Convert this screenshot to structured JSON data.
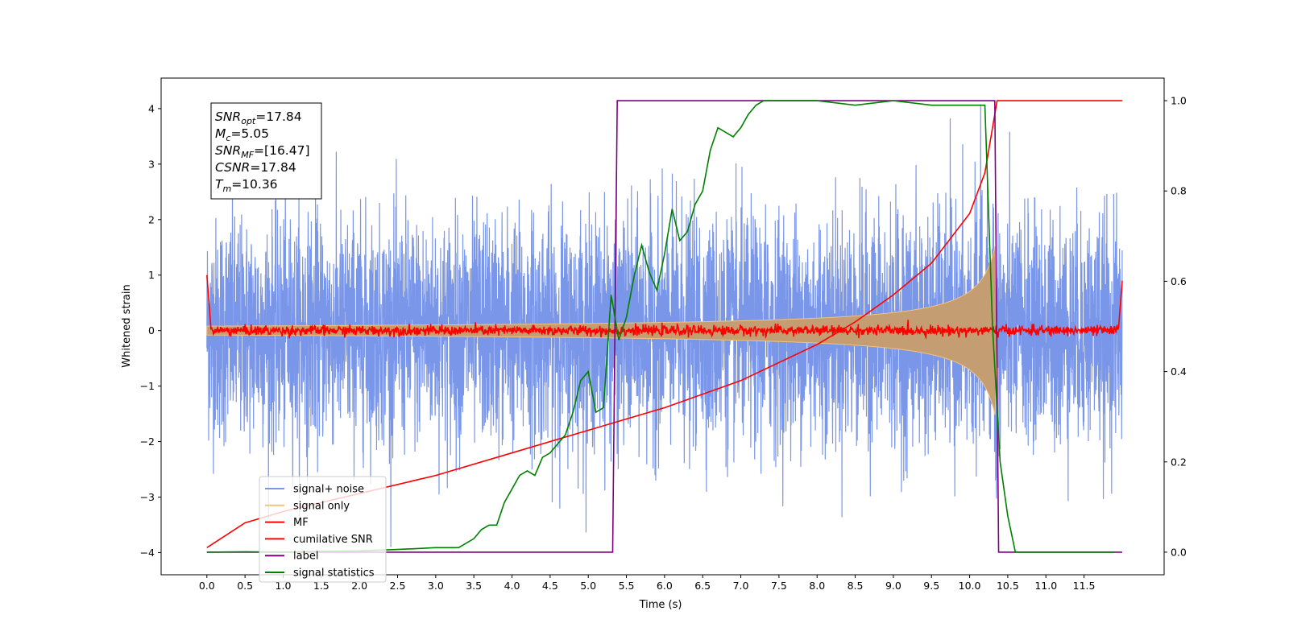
{
  "chart_data": {
    "type": "line",
    "xlabel": "Time (s)",
    "ylabel": "Whitened strain",
    "xlim": [
      -0.6,
      12.55
    ],
    "ylim": [
      -4.4,
      4.55
    ],
    "y2lim": [
      -0.05,
      1.05
    ],
    "x_ticks": [
      "0.0",
      "0.5",
      "1.0",
      "1.5",
      "2.0",
      "2.5",
      "3.0",
      "3.5",
      "4.0",
      "4.5",
      "5.0",
      "5.5",
      "6.0",
      "6.5",
      "7.0",
      "7.5",
      "8.0",
      "8.5",
      "9.0",
      "9.5",
      "10.0",
      "10.5",
      "11.0",
      "11.5"
    ],
    "y_ticks": [
      "−4",
      "−3",
      "−2",
      "−1",
      "0",
      "1",
      "2",
      "3",
      "4"
    ],
    "y2_ticks": [
      "0.0",
      "0.2",
      "0.4",
      "0.6",
      "0.8",
      "1.0"
    ],
    "grid": false,
    "legend_position": "lower-left",
    "stats": {
      "snr_opt": "=17.84",
      "mc": "=5.05",
      "snr_mf": "=[16.47]",
      "csnr": "=17.84",
      "tm": "=10.36"
    },
    "series": [
      {
        "name": "signal+ noise",
        "color": "#7a96e8",
        "axis": "left",
        "description": "white noise, std approx 1, spanning 0.0 to 12.0 s"
      },
      {
        "name": "signal only",
        "color": "#f5c27a",
        "axis": "left",
        "description": "chirp envelope growing to about ±1.7 near 10.35 s"
      },
      {
        "name": "MF",
        "color": "#ff0000",
        "axis": "left",
        "description": "near zero, spikes to 1.0 at 0.0 s and 0.9 at 12.0 s"
      },
      {
        "name": "cumilative SNR",
        "color": "#ff0000",
        "axis": "right",
        "x": [
          0.0,
          0.5,
          1.0,
          2.0,
          3.0,
          4.0,
          5.0,
          6.0,
          7.0,
          8.0,
          8.5,
          9.0,
          9.5,
          10.0,
          10.2,
          10.36,
          12.0
        ],
        "y": [
          0.01,
          0.065,
          0.09,
          0.13,
          0.17,
          0.22,
          0.27,
          0.32,
          0.38,
          0.46,
          0.51,
          0.57,
          0.64,
          0.75,
          0.84,
          1.0,
          1.0
        ]
      },
      {
        "name": "label",
        "color": "#800080",
        "axis": "right",
        "x": [
          0.0,
          5.32,
          5.38,
          10.33,
          10.38,
          12.0
        ],
        "y": [
          0.0,
          0.0,
          1.0,
          1.0,
          0.0,
          0.0
        ]
      },
      {
        "name": "signal statistics",
        "color": "#008000",
        "axis": "right",
        "x": [
          0.0,
          0.5,
          1.0,
          1.5,
          2.0,
          2.5,
          3.0,
          3.3,
          3.5,
          3.6,
          3.7,
          3.8,
          3.9,
          4.0,
          4.1,
          4.2,
          4.3,
          4.4,
          4.5,
          4.6,
          4.7,
          4.8,
          4.9,
          5.0,
          5.1,
          5.2,
          5.3,
          5.4,
          5.5,
          5.6,
          5.7,
          5.8,
          5.9,
          6.0,
          6.1,
          6.2,
          6.3,
          6.4,
          6.5,
          6.6,
          6.7,
          6.8,
          6.9,
          7.0,
          7.1,
          7.2,
          7.3,
          7.5,
          7.7,
          8.0,
          8.5,
          9.0,
          9.5,
          10.0,
          10.2,
          10.3,
          10.4,
          10.5,
          10.6,
          11.0,
          11.5,
          11.9
        ],
        "y": [
          0.0,
          0.001,
          0.0,
          0.002,
          0.003,
          0.006,
          0.01,
          0.01,
          0.03,
          0.05,
          0.06,
          0.06,
          0.11,
          0.14,
          0.17,
          0.18,
          0.17,
          0.21,
          0.22,
          0.24,
          0.26,
          0.31,
          0.38,
          0.4,
          0.31,
          0.32,
          0.57,
          0.47,
          0.52,
          0.61,
          0.68,
          0.62,
          0.58,
          0.66,
          0.76,
          0.69,
          0.71,
          0.77,
          0.8,
          0.89,
          0.94,
          0.93,
          0.92,
          0.94,
          0.97,
          0.99,
          1.0,
          1.0,
          1.0,
          1.0,
          0.99,
          1.0,
          0.99,
          0.99,
          0.99,
          0.5,
          0.2,
          0.08,
          0.0,
          0.0,
          0.0,
          0.0
        ]
      }
    ]
  }
}
